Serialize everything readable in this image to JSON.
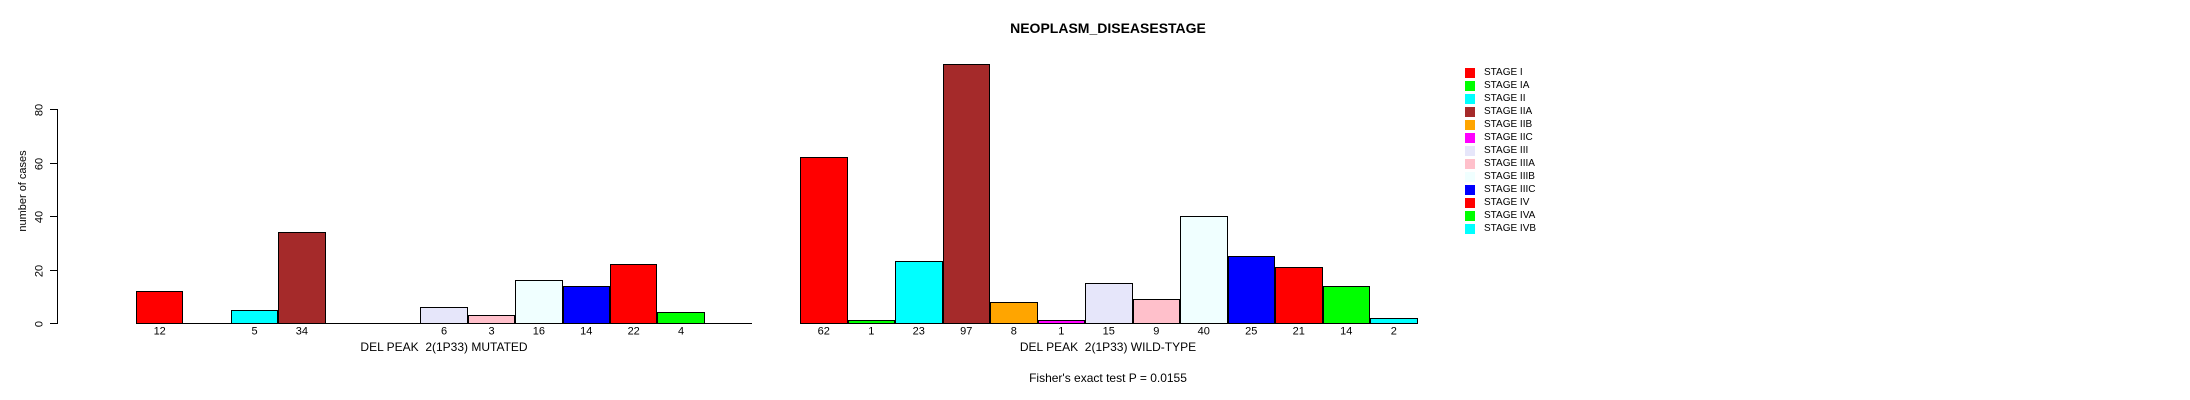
{
  "figure": {
    "title": "NEOPLASM_DISEASESTAGE",
    "y_axis_label": "number of cases",
    "footer": "Fisher's exact test P = 0.0155"
  },
  "chart_data": {
    "type": "bar",
    "title": "NEOPLASM_DISEASESTAGE",
    "xlabel": "",
    "ylabel": "number of cases",
    "ylim": [
      0,
      80
    ],
    "yticks": [
      0,
      20,
      40,
      60,
      80
    ],
    "grid": false,
    "legend_position": "right",
    "bar_border_color": "#000000",
    "categories": [
      "STAGE I",
      "STAGE IA",
      "STAGE II",
      "STAGE IIA",
      "STAGE IIB",
      "STAGE IIC",
      "STAGE III",
      "STAGE IIIA",
      "STAGE IIIB",
      "STAGE IIIC",
      "STAGE IV",
      "STAGE IVA",
      "STAGE IVB"
    ],
    "colors": [
      "#FF0000",
      "#00FF00",
      "#00FFFF",
      "#A52A2A",
      "#FFA500",
      "#FF00FF",
      "#E6E6FA",
      "#FFC0CB",
      "#F0FFFF",
      "#0000FF",
      "#FF0000",
      "#00FF00",
      "#00FFFF"
    ],
    "series": [
      {
        "name": "DEL PEAK  2(1P33) MUTATED",
        "values": [
          12,
          0,
          5,
          34,
          0,
          0,
          6,
          3,
          16,
          14,
          22,
          4,
          0
        ]
      },
      {
        "name": "DEL PEAK  2(1P33) WILD-TYPE",
        "values": [
          62,
          1,
          23,
          97,
          8,
          1,
          15,
          9,
          40,
          25,
          21,
          14,
          2
        ]
      }
    ],
    "bar_value_labels_shown_for_nonzero_only": true,
    "annotation": "Fisher's exact test P = 0.0155"
  }
}
